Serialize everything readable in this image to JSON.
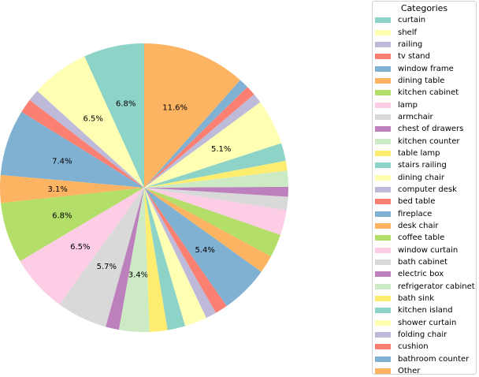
{
  "chart_data": {
    "type": "pie",
    "title": "",
    "legend_title": "Categories",
    "legend_position": "right",
    "start_angle": 90,
    "direction": "counterclockwise",
    "autopct_threshold": 3.0,
    "categories": [
      "curtain",
      "shelf",
      "railing",
      "tv stand",
      "window frame",
      "dining table",
      "kitchen cabinet",
      "lamp",
      "armchair",
      "chest of drawers",
      "kitchen counter",
      "table lamp",
      "stairs railing",
      "dining chair",
      "computer desk",
      "bed table",
      "fireplace",
      "desk chair",
      "coffee table",
      "window curtain",
      "bath cabinet",
      "electric box",
      "refrigerator cabinet",
      "bath sink",
      "kitchen island",
      "shower curtain",
      "folding chair",
      "cushion",
      "bathroom counter",
      "Other"
    ],
    "values": [
      6.8,
      6.5,
      1.3,
      1.6,
      7.4,
      3.1,
      6.8,
      6.5,
      5.7,
      1.5,
      3.4,
      2.0,
      2.0,
      2.5,
      1.2,
      1.4,
      5.4,
      2.0,
      2.6,
      2.8,
      1.5,
      1.1,
      1.8,
      1.1,
      2.0,
      5.1,
      1.1,
      1.1,
      1.1,
      11.6
    ],
    "colors": [
      "#8dd3c7",
      "#ffffb3",
      "#bebada",
      "#fb8072",
      "#80b1d3",
      "#fdb462",
      "#b3de69",
      "#fccde5",
      "#d9d9d9",
      "#bc80bd",
      "#ccebc5",
      "#ffed6f",
      "#8dd3c7",
      "#ffffb3",
      "#bebada",
      "#fb8072",
      "#80b1d3",
      "#fdb462",
      "#b3de69",
      "#fccde5",
      "#d9d9d9",
      "#bc80bd",
      "#ccebc5",
      "#ffed6f",
      "#8dd3c7",
      "#ffffb3",
      "#bebada",
      "#fb8072",
      "#80b1d3",
      "#fdb462"
    ],
    "labels_shown": [
      "6.8%",
      "6.5%",
      "7.4%",
      "3.1%",
      "6.8%",
      "6.5%",
      "5.7%",
      "3.4%",
      "5.4%",
      "5.1%",
      "11.6%"
    ]
  },
  "legend": {
    "title": "Categories",
    "items": [
      {
        "label": "curtain",
        "color": "#8dd3c7"
      },
      {
        "label": "shelf",
        "color": "#ffffb3"
      },
      {
        "label": "railing",
        "color": "#bebada"
      },
      {
        "label": "tv stand",
        "color": "#fb8072"
      },
      {
        "label": "window frame",
        "color": "#80b1d3"
      },
      {
        "label": "dining table",
        "color": "#fdb462"
      },
      {
        "label": "kitchen cabinet",
        "color": "#b3de69"
      },
      {
        "label": "lamp",
        "color": "#fccde5"
      },
      {
        "label": "armchair",
        "color": "#d9d9d9"
      },
      {
        "label": "chest of drawers",
        "color": "#bc80bd"
      },
      {
        "label": "kitchen counter",
        "color": "#ccebc5"
      },
      {
        "label": "table lamp",
        "color": "#ffed6f"
      },
      {
        "label": "stairs railing",
        "color": "#8dd3c7"
      },
      {
        "label": "dining chair",
        "color": "#ffffb3"
      },
      {
        "label": "computer desk",
        "color": "#bebada"
      },
      {
        "label": "bed table",
        "color": "#fb8072"
      },
      {
        "label": "fireplace",
        "color": "#80b1d3"
      },
      {
        "label": "desk chair",
        "color": "#fdb462"
      },
      {
        "label": "coffee table",
        "color": "#b3de69"
      },
      {
        "label": "window curtain",
        "color": "#fccde5"
      },
      {
        "label": "bath cabinet",
        "color": "#d9d9d9"
      },
      {
        "label": "electric box",
        "color": "#bc80bd"
      },
      {
        "label": "refrigerator cabinet",
        "color": "#ccebc5"
      },
      {
        "label": "bath sink",
        "color": "#ffed6f"
      },
      {
        "label": "kitchen island",
        "color": "#8dd3c7"
      },
      {
        "label": "shower curtain",
        "color": "#ffffb3"
      },
      {
        "label": "folding chair",
        "color": "#bebada"
      },
      {
        "label": "cushion",
        "color": "#fb8072"
      },
      {
        "label": "bathroom counter",
        "color": "#80b1d3"
      },
      {
        "label": "Other",
        "color": "#fdb462"
      }
    ]
  }
}
